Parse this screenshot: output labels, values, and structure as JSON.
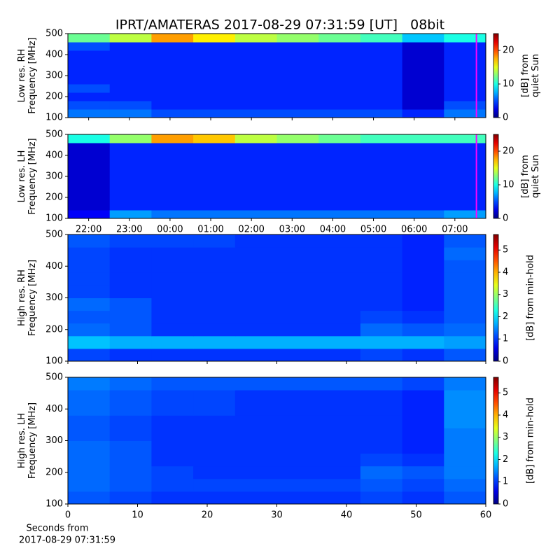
{
  "title": "IPRT/AMATERAS 2017-08-29 07:31:59 [UT]   08bit",
  "xlabel": [
    "Seconds from",
    "2017-08-29 07:31:59"
  ],
  "chart_data": [
    {
      "type": "heatmap",
      "ylabel": [
        "Low res. RH",
        "Frequency [MHz]"
      ],
      "colorbar_label": [
        "[dB] from",
        "quiet Sun"
      ],
      "xlim": [
        21.49,
        31.76
      ],
      "ylim": [
        100,
        500
      ],
      "yticks": [
        100,
        200,
        300,
        400,
        500
      ],
      "clim": [
        0,
        25
      ],
      "cticks": [
        0,
        10,
        20
      ],
      "colormap": "jet",
      "cursor": {
        "x": 31.53,
        "color": "#ff00ff"
      },
      "z": [
        [
          6,
          6,
          5,
          5,
          5,
          5,
          5,
          5,
          4,
          6
        ],
        [
          5,
          5,
          4,
          4,
          4,
          4,
          4,
          4,
          2,
          5
        ],
        [
          4,
          4,
          4,
          4,
          4,
          4,
          4,
          4,
          2,
          4
        ],
        [
          5,
          4,
          4,
          4,
          4,
          4,
          4,
          4,
          2,
          4
        ],
        [
          4,
          4,
          4,
          4,
          4,
          4,
          4,
          4,
          2,
          4
        ],
        [
          4,
          4,
          4,
          4,
          4,
          4,
          4,
          4,
          2,
          4
        ],
        [
          4,
          4,
          4,
          4,
          4,
          4,
          4,
          4,
          2,
          4
        ],
        [
          4,
          4,
          4,
          4,
          4,
          4,
          4,
          4,
          2,
          4
        ],
        [
          5,
          4,
          4,
          4,
          4,
          4,
          4,
          4,
          2,
          4
        ],
        [
          12,
          14,
          18,
          16,
          14,
          13,
          12,
          11,
          8,
          10
        ]
      ]
    },
    {
      "type": "heatmap",
      "ylabel": [
        "Low res. LH",
        "Frequency [MHz]"
      ],
      "colorbar_label": [
        "[dB] from",
        "quiet Sun"
      ],
      "xlim": [
        21.49,
        31.76
      ],
      "ylim": [
        100,
        500
      ],
      "yticks": [
        100,
        200,
        300,
        400,
        500
      ],
      "xticks": [
        {
          "value": 22,
          "label": "22:00"
        },
        {
          "value": 23,
          "label": "23:00"
        },
        {
          "value": 24,
          "label": "00:00"
        },
        {
          "value": 25,
          "label": "01:00"
        },
        {
          "value": 26,
          "label": "02:00"
        },
        {
          "value": 27,
          "label": "03:00"
        },
        {
          "value": 28,
          "label": "04:00"
        },
        {
          "value": 29,
          "label": "05:00"
        },
        {
          "value": 30,
          "label": "06:00"
        },
        {
          "value": 31,
          "label": "07:00"
        }
      ],
      "clim": [
        0,
        25
      ],
      "cticks": [
        0,
        10,
        20
      ],
      "colormap": "jet",
      "cursor": {
        "x": 31.53,
        "color": "#ff00ff"
      },
      "z": [
        [
          3,
          7,
          6,
          6,
          6,
          6,
          6,
          6,
          6,
          7
        ],
        [
          2,
          4,
          4,
          4,
          4,
          4,
          4,
          4,
          4,
          4
        ],
        [
          2,
          4,
          4,
          4,
          4,
          4,
          4,
          4,
          4,
          4
        ],
        [
          2,
          4,
          4,
          4,
          4,
          4,
          4,
          4,
          4,
          4
        ],
        [
          2,
          4,
          4,
          4,
          4,
          4,
          4,
          4,
          4,
          4
        ],
        [
          2,
          4,
          4,
          4,
          4,
          4,
          4,
          4,
          4,
          4
        ],
        [
          2,
          4,
          4,
          4,
          4,
          4,
          4,
          4,
          4,
          4
        ],
        [
          2,
          4,
          4,
          4,
          4,
          4,
          4,
          4,
          4,
          4
        ],
        [
          2,
          4,
          4,
          4,
          4,
          4,
          4,
          4,
          4,
          4
        ],
        [
          10,
          13,
          18,
          17,
          14,
          13,
          12,
          11,
          11,
          11
        ]
      ]
    },
    {
      "type": "heatmap",
      "ylabel": [
        "High res. RH",
        "Frequency [MHz]"
      ],
      "colorbar_label": [
        "[dB] from min-hold"
      ],
      "xlim": [
        0,
        60
      ],
      "ylim": [
        100,
        500
      ],
      "yticks": [
        100,
        200,
        300,
        400,
        500
      ],
      "clim": [
        0,
        5.7
      ],
      "cticks": [
        0,
        1,
        2,
        3,
        4,
        5
      ],
      "colormap": "jet",
      "z": [
        [
          1.1,
          1.0,
          1.0,
          1.0,
          1.0,
          1.0,
          1.0,
          1.1,
          1.0,
          1.2
        ],
        [
          1.8,
          1.7,
          1.7,
          1.7,
          1.7,
          1.7,
          1.7,
          1.7,
          1.7,
          1.6
        ],
        [
          1.3,
          1.2,
          1.0,
          1.0,
          1.0,
          1.0,
          1.0,
          1.3,
          1.2,
          1.3
        ],
        [
          1.2,
          1.2,
          1.0,
          1.0,
          1.0,
          1.0,
          1.0,
          1.1,
          1.0,
          1.2
        ],
        [
          1.3,
          1.2,
          1.0,
          1.0,
          1.0,
          1.0,
          1.0,
          1.0,
          0.9,
          1.2
        ],
        [
          1.1,
          1.0,
          1.0,
          1.0,
          1.0,
          1.0,
          1.0,
          1.0,
          0.9,
          1.2
        ],
        [
          1.1,
          1.0,
          1.0,
          1.0,
          1.0,
          1.0,
          1.0,
          1.0,
          0.9,
          1.2
        ],
        [
          1.1,
          1.0,
          1.0,
          1.0,
          1.0,
          1.0,
          1.0,
          1.0,
          0.9,
          1.2
        ],
        [
          1.1,
          1.0,
          1.0,
          1.0,
          1.0,
          1.0,
          1.0,
          1.0,
          0.9,
          1.3
        ],
        [
          1.2,
          1.1,
          1.1,
          1.1,
          1.0,
          1.0,
          1.0,
          1.0,
          0.9,
          1.2
        ]
      ]
    },
    {
      "type": "heatmap",
      "ylabel": [
        "High res. LH",
        "Frequency [MHz]"
      ],
      "colorbar_label": [
        "[dB] from min-hold"
      ],
      "xlim": [
        0,
        60
      ],
      "ylim": [
        100,
        500
      ],
      "yticks": [
        100,
        200,
        300,
        400,
        500
      ],
      "xticks": [
        0,
        10,
        20,
        30,
        40,
        50,
        60
      ],
      "clim": [
        0,
        5.7
      ],
      "cticks": [
        0,
        1,
        2,
        3,
        4,
        5
      ],
      "colormap": "jet",
      "z": [
        [
          1.2,
          1.1,
          1.0,
          1.0,
          1.0,
          1.0,
          1.0,
          1.1,
          1.0,
          1.2
        ],
        [
          1.3,
          1.2,
          1.1,
          1.1,
          1.1,
          1.1,
          1.1,
          1.2,
          1.1,
          1.3
        ],
        [
          1.3,
          1.2,
          1.1,
          1.0,
          1.0,
          1.0,
          1.0,
          1.3,
          1.2,
          1.4
        ],
        [
          1.3,
          1.2,
          1.0,
          1.0,
          1.0,
          1.0,
          1.0,
          1.1,
          1.0,
          1.4
        ],
        [
          1.3,
          1.2,
          1.0,
          1.0,
          1.0,
          1.0,
          1.0,
          1.0,
          0.9,
          1.4
        ],
        [
          1.2,
          1.1,
          1.0,
          1.0,
          1.0,
          1.0,
          1.0,
          1.0,
          0.9,
          1.4
        ],
        [
          1.2,
          1.1,
          1.0,
          1.0,
          1.0,
          1.0,
          1.0,
          1.0,
          0.9,
          1.5
        ],
        [
          1.3,
          1.2,
          1.1,
          1.1,
          1.0,
          1.0,
          1.0,
          1.0,
          0.9,
          1.5
        ],
        [
          1.3,
          1.2,
          1.1,
          1.1,
          1.0,
          1.0,
          1.0,
          1.0,
          0.9,
          1.5
        ],
        [
          1.4,
          1.3,
          1.2,
          1.2,
          1.2,
          1.2,
          1.2,
          1.2,
          1.1,
          1.4
        ]
      ]
    }
  ]
}
